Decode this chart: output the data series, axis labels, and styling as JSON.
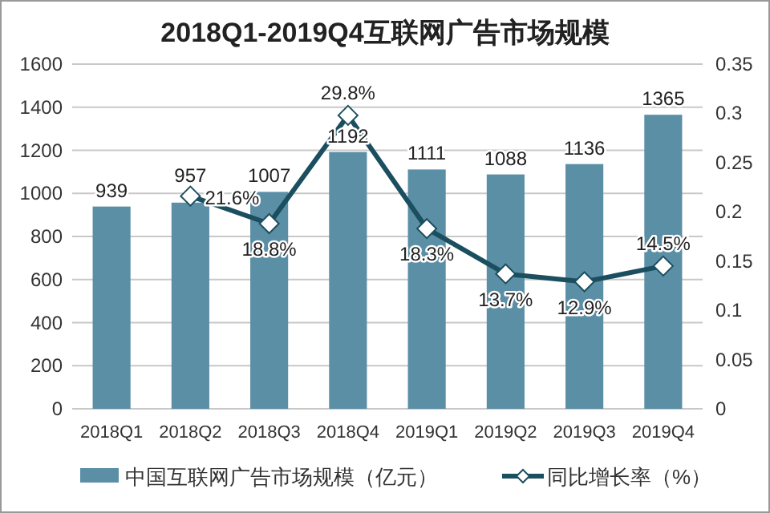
{
  "chart_data": {
    "type": "bar",
    "title": "2018Q1-2019Q4互联网广告市场规模",
    "categories": [
      "2018Q1",
      "2018Q2",
      "2018Q3",
      "2018Q4",
      "2019Q1",
      "2019Q2",
      "2019Q3",
      "2019Q4"
    ],
    "series": [
      {
        "name": "中国互联网广告市场规模（亿元）",
        "color": "#5b8fa6",
        "values": [
          939,
          957,
          1007,
          1192,
          1111,
          1088,
          1136,
          1365
        ],
        "data_labels": true
      },
      {
        "name": "同比增长率（%）",
        "type": "line",
        "axis": "y2",
        "color": "#1b4f5f",
        "marker": "diamond",
        "values": [
          null,
          0.216,
          0.188,
          0.298,
          0.183,
          0.137,
          0.129,
          0.145
        ],
        "value_labels": [
          null,
          "21.6%",
          "18.8%",
          "29.8%",
          "18.3%",
          "13.7%",
          "12.9%",
          "14.5%"
        ]
      }
    ],
    "ylim": [
      0,
      1600
    ],
    "yticks": [
      0,
      200,
      400,
      600,
      800,
      1000,
      1200,
      1400,
      1600
    ],
    "y2lim": [
      0,
      0.35
    ],
    "y2ticks": [
      0,
      0.05,
      0.1,
      0.15,
      0.2,
      0.25,
      0.3,
      0.35
    ],
    "grid": "y",
    "legend": "bottom"
  }
}
